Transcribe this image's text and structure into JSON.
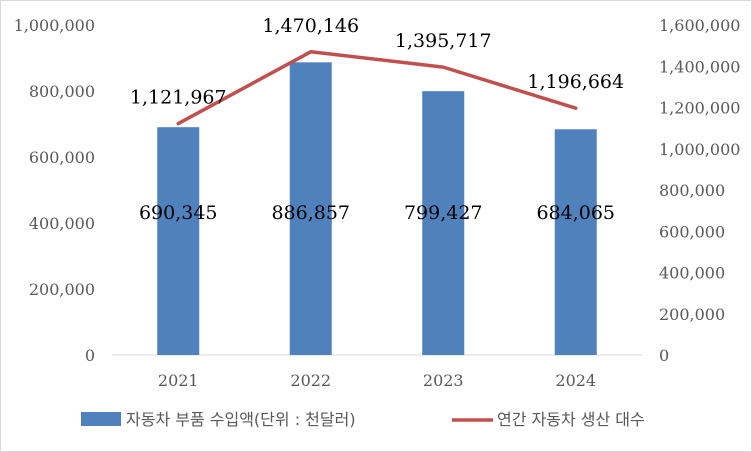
{
  "chart_data": {
    "type": "bar",
    "categories": [
      "2021",
      "2022",
      "2023",
      "2024"
    ],
    "series": [
      {
        "name": "자동차 부품 수입액(단위 : 천달러)",
        "type": "bar",
        "axis": "left",
        "color": "#4f81bd",
        "values": [
          690345,
          886857,
          799427,
          684065
        ],
        "labels": [
          "690,345",
          "886,857",
          "799,427",
          "684,065"
        ]
      },
      {
        "name": "연간 자동차 생산 대수",
        "type": "line",
        "axis": "right",
        "color": "#c0504d",
        "values": [
          1121967,
          1470146,
          1395717,
          1196664
        ],
        "labels": [
          "1,121,967",
          "1,470,146",
          "1,395,717",
          "1,196,664"
        ]
      }
    ],
    "y_left": {
      "range": [
        0,
        1000000
      ],
      "ticks": [
        0,
        200000,
        400000,
        600000,
        800000,
        1000000
      ],
      "tick_labels": [
        "0",
        "200,000",
        "400,000",
        "600,000",
        "800,000",
        "1,000,000"
      ]
    },
    "y_right": {
      "range": [
        0,
        1600000
      ],
      "ticks": [
        0,
        200000,
        400000,
        600000,
        800000,
        1000000,
        1200000,
        1400000,
        1600000
      ],
      "tick_labels": [
        "0",
        "200,000",
        "400,000",
        "600,000",
        "800,000",
        "1,000,000",
        "1,200,000",
        "1,400,000",
        "1,600,000"
      ]
    },
    "grid": false,
    "legend_position": "bottom",
    "axis_color": "#d9d9d9"
  }
}
